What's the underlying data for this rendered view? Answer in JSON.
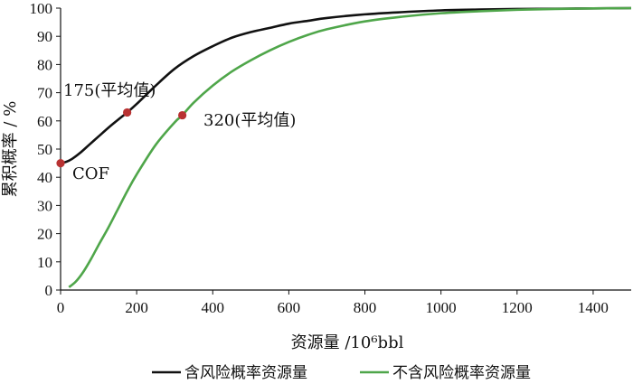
{
  "chart_data": {
    "type": "line",
    "xlabel": "资源量 /10⁶bbl",
    "ylabel": "累积概率 / %",
    "xlim": [
      0,
      1500
    ],
    "ylim": [
      0,
      100
    ],
    "x_ticks": [
      0,
      200,
      400,
      600,
      800,
      1000,
      1200,
      1400
    ],
    "y_ticks": [
      0,
      10,
      20,
      30,
      40,
      50,
      60,
      70,
      80,
      90,
      100
    ],
    "grid": false,
    "legend_position": "bottom",
    "series": [
      {
        "name": "含风险概率资源量",
        "color": "#111111",
        "x": [
          0,
          15,
          30,
          50,
          75,
          100,
          125,
          150,
          175,
          200,
          250,
          300,
          350,
          400,
          450,
          500,
          550,
          600,
          650,
          700,
          800,
          900,
          1000,
          1100,
          1200,
          1300,
          1400,
          1500
        ],
        "y": [
          45,
          45.5,
          46.5,
          48.5,
          51.5,
          54.5,
          57.5,
          60.3,
          63,
          66,
          72.5,
          78.5,
          83,
          86.5,
          89.5,
          91.5,
          93,
          94.5,
          95.5,
          96.5,
          97.8,
          98.6,
          99.2,
          99.5,
          99.7,
          99.8,
          99.9,
          100
        ]
      },
      {
        "name": "不含风险概率资源量",
        "color": "#4fa64a",
        "x": [
          22,
          40,
          60,
          80,
          100,
          125,
          150,
          175,
          200,
          250,
          300,
          320,
          350,
          400,
          450,
          500,
          550,
          600,
          650,
          700,
          800,
          900,
          1000,
          1100,
          1200,
          1300,
          1400,
          1500
        ],
        "y": [
          1,
          3,
          6.5,
          11,
          16,
          22,
          28.5,
          35,
          41,
          51.5,
          59.5,
          62,
          66.5,
          72.5,
          77.5,
          81.5,
          85,
          88,
          90.5,
          92.5,
          95.3,
          97,
          98.2,
          98.9,
          99.4,
          99.7,
          99.9,
          100
        ]
      }
    ],
    "points": [
      {
        "x": 0,
        "y": 45,
        "label": "COF",
        "color": "#b83232"
      },
      {
        "x": 175,
        "y": 63,
        "label": "175(平均值)",
        "color": "#b83232"
      },
      {
        "x": 320,
        "y": 62,
        "label": "320(平均值)",
        "color": "#b83232"
      }
    ]
  }
}
